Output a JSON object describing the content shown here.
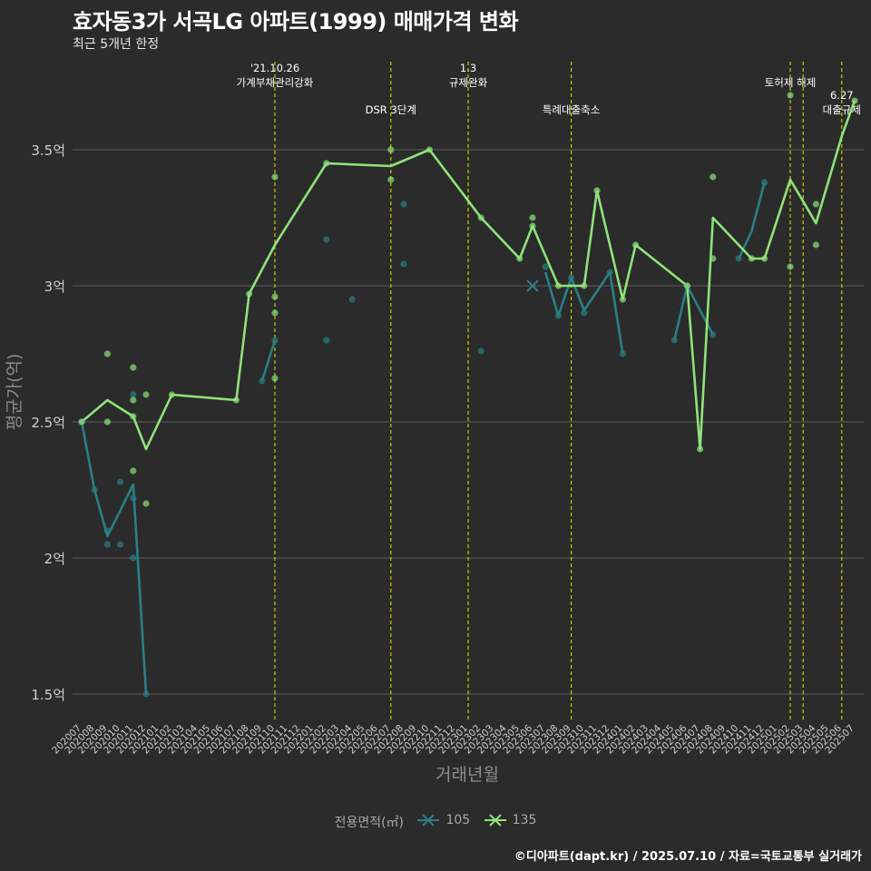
{
  "title": "효자동3가 서곡LG 아파트(1999) 매매가격 변화",
  "subtitle": "최근 5개년 한정",
  "caption": "©디아파트(dapt.kr) / 2025.07.10 / 자료=국토교통부 실거래가",
  "legend": {
    "title": "전용면적(㎡)",
    "items": [
      {
        "label": "105",
        "color": "#2a7f86"
      },
      {
        "label": "135",
        "color": "#8fe37a"
      }
    ]
  },
  "chart_data": {
    "type": "line",
    "xlabel": "거래년월",
    "ylabel": "평균가(억)",
    "ylim": [
      1.4,
      3.85
    ],
    "yticks": [
      {
        "v": 1.5,
        "label": "1.5억"
      },
      {
        "v": 2.0,
        "label": "2억"
      },
      {
        "v": 2.5,
        "label": "2.5억"
      },
      {
        "v": 3.0,
        "label": "3억"
      },
      {
        "v": 3.5,
        "label": "3.5억"
      }
    ],
    "categories": [
      "202007",
      "202008",
      "202009",
      "202010",
      "202011",
      "202012",
      "202101",
      "202102",
      "202103",
      "202104",
      "202105",
      "202106",
      "202107",
      "202108",
      "202109",
      "202110",
      "202111",
      "202112",
      "202201",
      "202202",
      "202203",
      "202204",
      "202205",
      "202206",
      "202207",
      "202208",
      "202209",
      "202210",
      "202211",
      "202212",
      "202301",
      "202302",
      "202303",
      "202304",
      "202305",
      "202306",
      "202307",
      "202308",
      "202309",
      "202310",
      "202311",
      "202312",
      "202401",
      "202402",
      "202403",
      "202404",
      "202405",
      "202406",
      "202407",
      "202408",
      "202409",
      "202410",
      "202411",
      "202412",
      "202501",
      "202502",
      "202503",
      "202504",
      "202505",
      "202506",
      "202507"
    ],
    "series": [
      {
        "name": "105",
        "color": "#2a7f86",
        "line": [
          [
            0,
            2.5
          ],
          [
            1,
            2.25
          ],
          [
            2,
            2.08
          ],
          [
            4,
            2.27
          ],
          [
            5,
            1.5
          ],
          null,
          [
            14,
            2.65
          ],
          [
            15,
            2.8
          ],
          null,
          [
            36,
            3.05
          ],
          [
            37,
            2.89
          ],
          [
            38,
            3.03
          ],
          [
            39,
            2.91
          ],
          [
            41,
            3.05
          ],
          [
            42,
            2.75
          ],
          null,
          [
            46,
            2.8
          ],
          [
            47,
            3.0
          ],
          [
            49,
            2.82
          ],
          null,
          [
            51,
            3.1
          ],
          [
            52,
            3.2
          ],
          [
            53,
            3.38
          ]
        ],
        "points": [
          [
            0,
            2.5
          ],
          [
            1,
            2.25
          ],
          [
            2,
            2.05
          ],
          [
            2,
            2.1
          ],
          [
            3,
            2.05
          ],
          [
            3,
            2.28
          ],
          [
            4,
            2.6
          ],
          [
            4,
            2.22
          ],
          [
            4,
            2.0
          ],
          [
            5,
            1.5
          ],
          [
            14,
            2.65
          ],
          [
            15,
            2.8
          ],
          [
            19,
            3.17
          ],
          [
            19,
            2.8
          ],
          [
            21,
            2.95
          ],
          [
            25,
            3.3
          ],
          [
            25,
            3.08
          ],
          [
            31,
            2.76
          ],
          [
            36,
            3.07
          ],
          [
            37,
            2.89
          ],
          [
            38,
            3.03
          ],
          [
            39,
            2.9
          ],
          [
            41,
            3.05
          ],
          [
            42,
            2.75
          ],
          [
            46,
            2.8
          ],
          [
            47,
            3.0
          ],
          [
            49,
            2.82
          ],
          [
            51,
            3.1
          ],
          [
            53,
            3.38
          ]
        ]
      },
      {
        "name": "135",
        "color": "#8fe37a",
        "line": [
          [
            0,
            2.5
          ],
          [
            2,
            2.58
          ],
          [
            4,
            2.52
          ],
          [
            5,
            2.4
          ],
          [
            7,
            2.6
          ],
          [
            12,
            2.58
          ],
          [
            13,
            2.97
          ],
          [
            15,
            3.15
          ],
          [
            19,
            3.45
          ],
          [
            24,
            3.44
          ],
          [
            27,
            3.5
          ],
          [
            31,
            3.25
          ],
          [
            34,
            3.1
          ],
          [
            35,
            3.22
          ],
          [
            37,
            3.0
          ],
          [
            39,
            3.0
          ],
          [
            40,
            3.35
          ],
          [
            42,
            2.95
          ],
          [
            43,
            3.15
          ],
          [
            47,
            3.0
          ],
          [
            48,
            2.4
          ],
          [
            49,
            3.25
          ],
          [
            51,
            3.15
          ],
          [
            52,
            3.1
          ],
          [
            53,
            3.1
          ],
          [
            55,
            3.39
          ],
          [
            57,
            3.23
          ],
          [
            59,
            3.55
          ],
          [
            60,
            3.68
          ]
        ],
        "points": [
          [
            0,
            2.5
          ],
          [
            2,
            2.75
          ],
          [
            2,
            2.5
          ],
          [
            4,
            2.7
          ],
          [
            4,
            2.58
          ],
          [
            4,
            2.52
          ],
          [
            4,
            2.32
          ],
          [
            5,
            2.6
          ],
          [
            5,
            2.2
          ],
          [
            7,
            2.6
          ],
          [
            12,
            2.58
          ],
          [
            13,
            2.97
          ],
          [
            15,
            3.4
          ],
          [
            15,
            2.96
          ],
          [
            15,
            2.9
          ],
          [
            15,
            2.66
          ],
          [
            19,
            3.45
          ],
          [
            24,
            3.5
          ],
          [
            24,
            3.39
          ],
          [
            27,
            3.5
          ],
          [
            31,
            3.25
          ],
          [
            34,
            3.1
          ],
          [
            35,
            3.25
          ],
          [
            35,
            3.22
          ],
          [
            37,
            3.0
          ],
          [
            39,
            3.0
          ],
          [
            40,
            3.35
          ],
          [
            42,
            2.95
          ],
          [
            43,
            3.15
          ],
          [
            47,
            3.0
          ],
          [
            48,
            2.4
          ],
          [
            49,
            3.4
          ],
          [
            49,
            3.1
          ],
          [
            52,
            3.1
          ],
          [
            53,
            3.1
          ],
          [
            55,
            3.7
          ],
          [
            55,
            3.07
          ],
          [
            57,
            3.3
          ],
          [
            57,
            3.15
          ],
          [
            60,
            3.68
          ]
        ]
      }
    ],
    "cross_markers": [
      {
        "series": "105",
        "x": 35,
        "y": 3.0
      }
    ],
    "events": [
      {
        "x": 15,
        "lines": [
          "'21.10.26",
          "가계부채관리강화"
        ],
        "row": 0
      },
      {
        "x": 24,
        "lines": [
          "DSR 3단계"
        ],
        "row": 1
      },
      {
        "x": 30,
        "lines": [
          "1.3",
          "규제완화"
        ],
        "row": 0
      },
      {
        "x": 38,
        "lines": [
          "특례대출축소"
        ],
        "row": 1
      },
      {
        "x": 55,
        "lines": [
          "토허제 해제"
        ],
        "row": 0
      },
      {
        "x": 56,
        "lines": [],
        "row": 0
      },
      {
        "x": 59,
        "lines": [
          "6.27",
          "대출규제"
        ],
        "row": 1
      }
    ]
  }
}
